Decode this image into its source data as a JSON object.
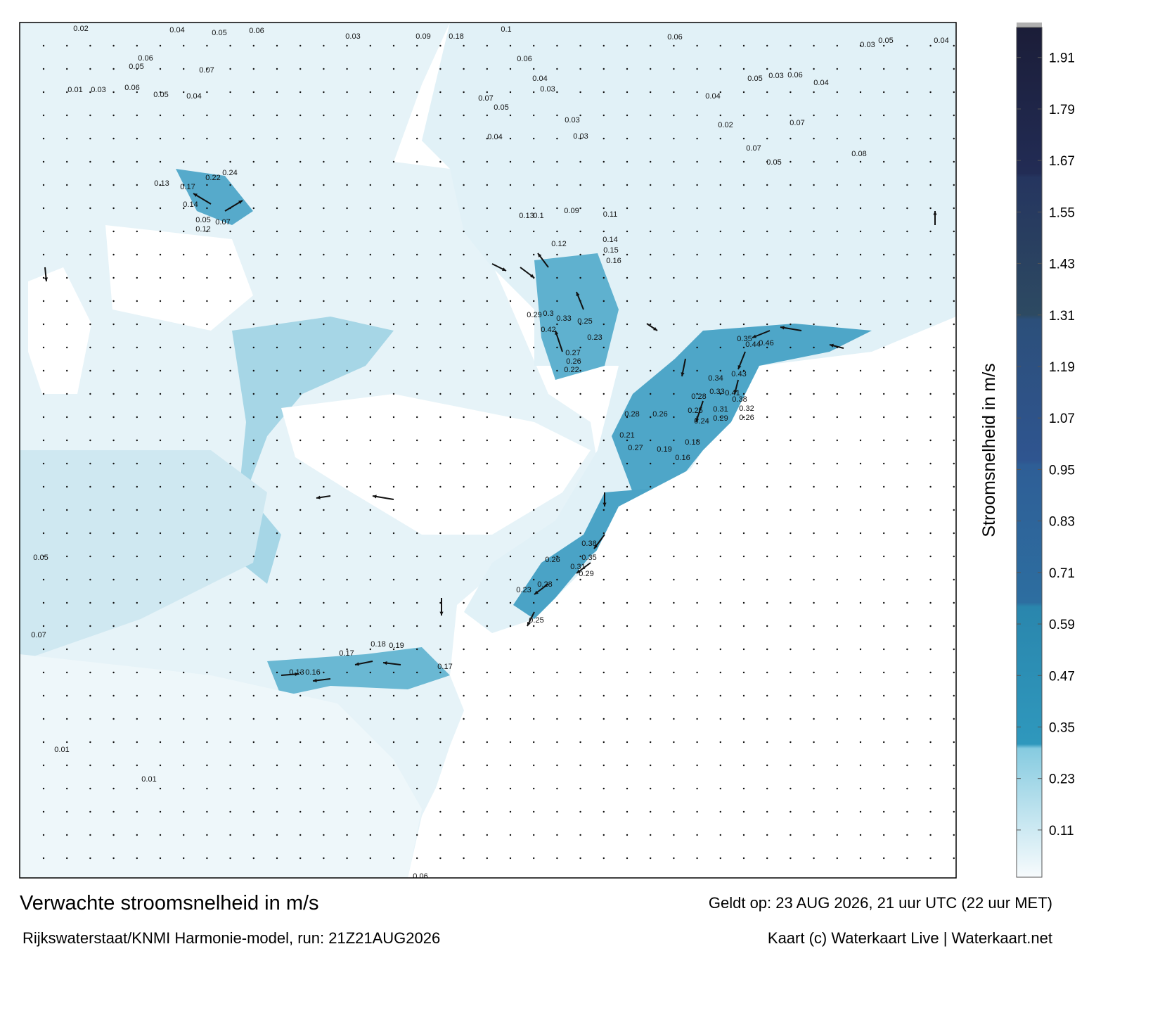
{
  "title": "Verwachte stroomsnelheid in m/s",
  "valid": "Geldt op: 23 AUG 2026, 21 uur UTC (22 uur MET)",
  "source": "Rijkswaterstaat/KNMI Harmonie-model, run: 21Z21AUG2026",
  "credit": "Kaart (c) Waterkaart Live | Waterkaart.net",
  "colorbar": {
    "label": "Stroomsnelheid in m/s",
    "lim": [
      0,
      1.98
    ],
    "ticks": [
      0.11,
      0.23,
      0.35,
      0.47,
      0.59,
      0.71,
      0.83,
      0.95,
      1.07,
      1.19,
      1.31,
      1.43,
      1.55,
      1.67,
      1.79,
      1.91
    ],
    "stops": [
      {
        "value": 0,
        "color": "#f7fbfd"
      },
      {
        "value": 0.3,
        "color": "#86cbe0"
      },
      {
        "value": 0.31,
        "color": "#2f98bd"
      },
      {
        "value": 0.63,
        "color": "#2a86ad"
      },
      {
        "value": 0.64,
        "color": "#2d6ea0"
      },
      {
        "value": 0.96,
        "color": "#2e5e96"
      },
      {
        "value": 0.97,
        "color": "#2f5590"
      },
      {
        "value": 1.3,
        "color": "#2c4f7a"
      },
      {
        "value": 1.31,
        "color": "#2d4a62"
      },
      {
        "value": 1.63,
        "color": "#25355f"
      },
      {
        "value": 1.64,
        "color": "#222c55"
      },
      {
        "value": 1.98,
        "color": "#1b1d38"
      }
    ]
  },
  "map": {
    "labels": [
      "0.02",
      "0.04",
      "0.05",
      "0.06",
      "0.03",
      "0.09",
      "0.18",
      "0.1",
      "0.06",
      "0.03",
      "0.05",
      "0.04",
      "0.06",
      "0.05",
      "0.07",
      "0.01",
      "0.03",
      "0.06",
      "0.05",
      "0.04",
      "0.06",
      "0.04",
      "0.03",
      "0.07",
      "0.05",
      "0.03",
      "0.03",
      "0.04",
      "0.05",
      "0.03",
      "0.06",
      "0.04",
      "0.04",
      "0.02",
      "0.07",
      "0.07",
      "0.05",
      "0.08",
      "0.22",
      "0.24",
      "0.17",
      "0.13",
      "0.14",
      "0.05",
      "0.12",
      "0.07",
      "0.13",
      "0.1",
      "0.09",
      "0.11",
      "0.12",
      "0.14",
      "0.15",
      "0.16",
      "0.29",
      "0.3",
      "0.33",
      "0.25",
      "0.42",
      "0.27",
      "0.26",
      "0.22",
      "0.23",
      "0.35",
      "0.44",
      "0.46",
      "0.43",
      "0.34",
      "0.33",
      "0.41",
      "0.38",
      "0.28",
      "0.26",
      "0.28",
      "0.25",
      "0.24",
      "0.31",
      "0.29",
      "0.32",
      "0.26",
      "0.21",
      "0.27",
      "0.19",
      "0.18",
      "0.16",
      "0.38",
      "0.35",
      "0.31",
      "0.29",
      "0.26",
      "0.28",
      "0.23",
      "0.25",
      "0.18",
      "0.19",
      "0.17",
      "0.17",
      "0.16",
      "0.13",
      "0.05",
      "0.07",
      "0.01",
      "0.01",
      "0.06"
    ]
  }
}
